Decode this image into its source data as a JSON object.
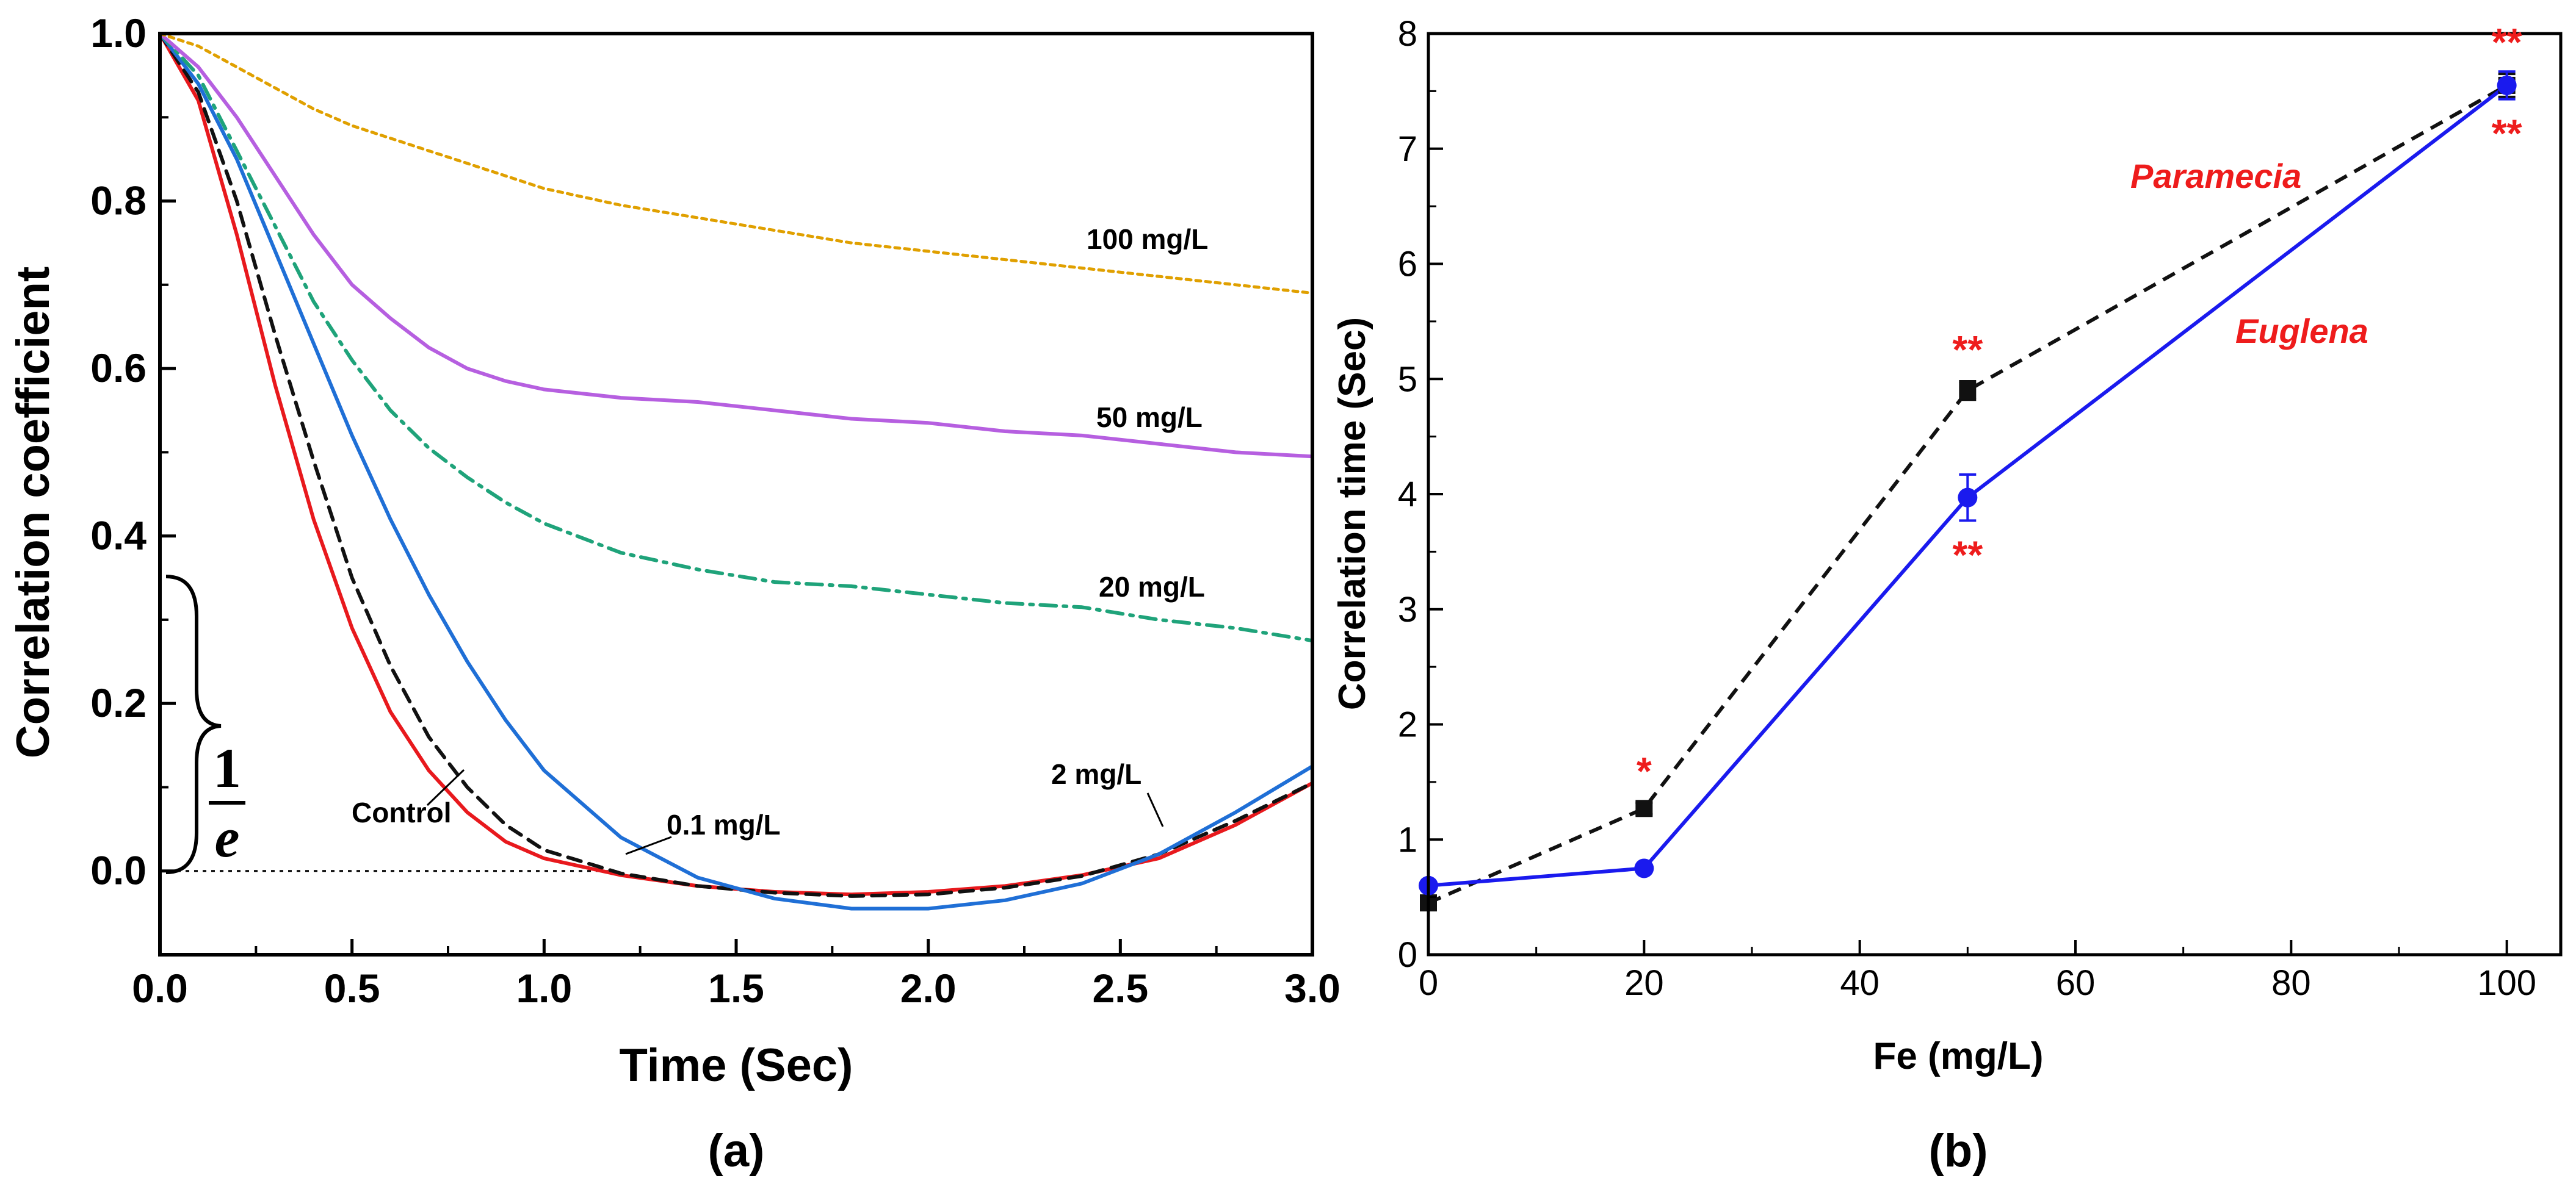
{
  "chart_data": [
    {
      "panel_label": "(a)",
      "type": "line",
      "xlabel": "Time (Sec)",
      "ylabel": "Correlation coefficient",
      "xlim": [
        0,
        3.0
      ],
      "ylim": [
        -0.1,
        1.0
      ],
      "xticks": [
        "0.0",
        "0.5",
        "1.0",
        "1.5",
        "2.0",
        "2.5",
        "3.0"
      ],
      "yticks": [
        "0.0",
        "0.2",
        "0.4",
        "0.6",
        "0.8",
        "1.0"
      ],
      "x": [
        0,
        0.1,
        0.2,
        0.3,
        0.4,
        0.5,
        0.6,
        0.7,
        0.8,
        0.9,
        1.0,
        1.2,
        1.4,
        1.6,
        1.8,
        2.0,
        2.2,
        2.4,
        2.6,
        2.8,
        3.0
      ],
      "series": [
        {
          "name": "Control",
          "color": "#e8191d",
          "dash": "solid",
          "values": [
            1.0,
            0.92,
            0.76,
            0.58,
            0.42,
            0.29,
            0.19,
            0.12,
            0.07,
            0.035,
            0.015,
            -0.005,
            -0.018,
            -0.025,
            -0.028,
            -0.025,
            -0.018,
            -0.005,
            0.015,
            0.055,
            0.105
          ]
        },
        {
          "name": "0.1 mg/L",
          "color": "#111111",
          "dash": "dashed",
          "values": [
            1.0,
            0.93,
            0.8,
            0.64,
            0.49,
            0.35,
            0.245,
            0.16,
            0.1,
            0.055,
            0.025,
            -0.003,
            -0.018,
            -0.026,
            -0.03,
            -0.028,
            -0.02,
            -0.006,
            0.02,
            0.06,
            0.105
          ]
        },
        {
          "name": "2 mg/L",
          "color": "#1f6fd6",
          "dash": "solid",
          "values": [
            1.0,
            0.94,
            0.85,
            0.74,
            0.63,
            0.52,
            0.42,
            0.33,
            0.25,
            0.18,
            0.12,
            0.04,
            -0.008,
            -0.033,
            -0.045,
            -0.045,
            -0.035,
            -0.015,
            0.02,
            0.07,
            0.125
          ]
        },
        {
          "name": "20 mg/L",
          "color": "#1fa37a",
          "dash": "dashdot",
          "values": [
            1.0,
            0.95,
            0.86,
            0.77,
            0.68,
            0.61,
            0.55,
            0.505,
            0.47,
            0.44,
            0.415,
            0.38,
            0.36,
            0.345,
            0.34,
            0.33,
            0.32,
            0.315,
            0.3,
            0.29,
            0.275
          ]
        },
        {
          "name": "50 mg/L",
          "color": "#b65fe0",
          "dash": "solid",
          "values": [
            1.0,
            0.96,
            0.9,
            0.83,
            0.76,
            0.7,
            0.66,
            0.625,
            0.6,
            0.585,
            0.575,
            0.565,
            0.56,
            0.55,
            0.54,
            0.535,
            0.525,
            0.52,
            0.51,
            0.5,
            0.495
          ]
        },
        {
          "name": "100 mg/L",
          "color": "#e0a000",
          "dash": "dotted",
          "values": [
            1.0,
            0.985,
            0.96,
            0.935,
            0.91,
            0.89,
            0.875,
            0.86,
            0.845,
            0.83,
            0.815,
            0.795,
            0.78,
            0.765,
            0.75,
            0.74,
            0.73,
            0.72,
            0.71,
            0.7,
            0.69
          ]
        }
      ],
      "reference_line": {
        "y": 0.0,
        "style": "dotted"
      },
      "brace_label": {
        "numerator": "1",
        "denominator": "e"
      },
      "labels": {
        "control": "Control",
        "c01": "0.1 mg/L",
        "c2": "2 mg/L",
        "c20": "20 mg/L",
        "c50": "50 mg/L",
        "c100": "100 mg/L"
      }
    },
    {
      "panel_label": "(b)",
      "type": "line",
      "xlabel": "Fe (mg/L)",
      "ylabel": "Correlation time (Sec)",
      "xlim": [
        0,
        105
      ],
      "ylim": [
        0,
        8
      ],
      "xticks": [
        "0",
        "20",
        "40",
        "60",
        "80",
        "100"
      ],
      "yticks": [
        "0",
        "1",
        "2",
        "3",
        "4",
        "5",
        "6",
        "7",
        "8"
      ],
      "series": [
        {
          "name": "Paramecia",
          "color": "#111111",
          "dash": "dashed",
          "marker": "square",
          "x": [
            0,
            20,
            50,
            100
          ],
          "values": [
            0.45,
            1.27,
            4.9,
            7.55
          ],
          "err": [
            0.03,
            0.05,
            0.08,
            0.1
          ]
        },
        {
          "name": "Euglena",
          "color": "#1a1aee",
          "dash": "solid",
          "marker": "circle",
          "x": [
            0,
            20,
            50,
            100
          ],
          "values": [
            0.6,
            0.75,
            3.97,
            7.55
          ],
          "err": [
            0.03,
            0.03,
            0.2,
            0.12
          ]
        }
      ],
      "significance": [
        {
          "x": 20,
          "text": "*",
          "near": "above",
          "series": "Paramecia"
        },
        {
          "x": 50,
          "text": "**",
          "near": "above",
          "series": "Paramecia"
        },
        {
          "x": 50,
          "text": "**",
          "near": "below",
          "series": "Euglena"
        },
        {
          "x": 100,
          "text": "**",
          "near": "above",
          "series": "Paramecia"
        },
        {
          "x": 100,
          "text": "**",
          "near": "below",
          "series": "Euglena"
        }
      ],
      "annotation_color": "#ee1c1c",
      "labels": {
        "paramecia": "Paramecia",
        "euglena": "Euglena"
      }
    }
  ]
}
